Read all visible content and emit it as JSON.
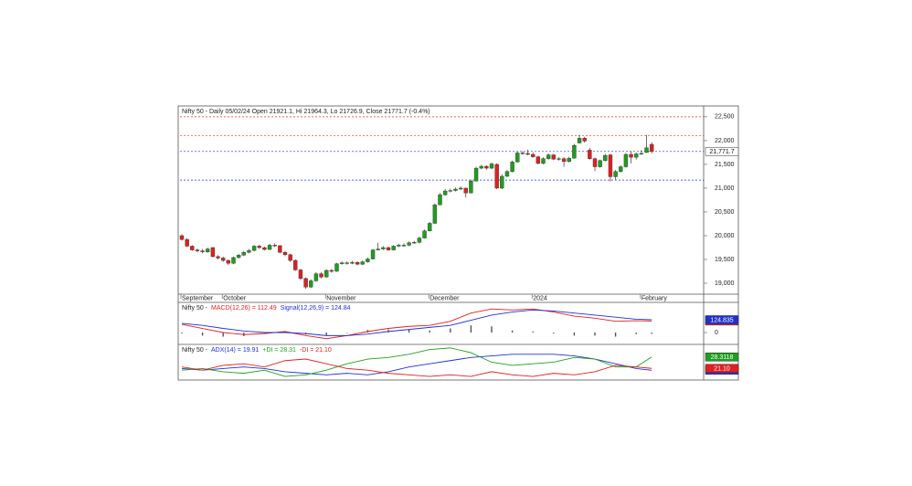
{
  "chart_data": [
    {
      "type": "candlestick",
      "title": "Nifty 50 - Daily 05/02/24 Open 21921.1, Hi 21964.3, Lo 21726.9, Close 21771.7 (-0.4%)",
      "categories": [
        "September",
        null,
        null,
        null,
        null,
        null,
        null,
        null,
        "October",
        null,
        null,
        null,
        null,
        null,
        null,
        null,
        null,
        null,
        null,
        null,
        null,
        null,
        null,
        null,
        null,
        null,
        null,
        null,
        "November",
        null,
        null,
        null,
        null,
        null,
        null,
        null,
        null,
        null,
        null,
        null,
        null,
        null,
        null,
        null,
        null,
        null,
        null,
        null,
        "December",
        null,
        null,
        null,
        null,
        null,
        null,
        null,
        null,
        null,
        null,
        null,
        null,
        null,
        null,
        null,
        null,
        null,
        null,
        null,
        "2024",
        null,
        null,
        null,
        null,
        null,
        null,
        null,
        null,
        null,
        null,
        null,
        null,
        null,
        null,
        null,
        null,
        null,
        null,
        null,
        null,
        "February",
        null,
        null
      ],
      "open": [
        20000,
        19920,
        19780,
        19700,
        19680,
        19660,
        19750,
        19560,
        19530,
        19480,
        19420,
        19540,
        19590,
        19650,
        19690,
        19780,
        19750,
        19710,
        19800,
        19790,
        19650,
        19600,
        19480,
        19280,
        19100,
        18920,
        19050,
        19200,
        19130,
        19270,
        19250,
        19410,
        19430,
        19420,
        19440,
        19400,
        19450,
        19510,
        19700,
        19720,
        19750,
        19700,
        19780,
        19800,
        19800,
        19850,
        19860,
        19950,
        20100,
        20260,
        20650,
        20860,
        20940,
        20950,
        20980,
        21000,
        20900,
        21150,
        21420,
        21460,
        21420,
        21500,
        21000,
        21250,
        21350,
        21550,
        21740,
        21730,
        21710,
        21660,
        21520,
        21620,
        21700,
        21610,
        21620,
        21560,
        21630,
        21950,
        22050,
        21800,
        21620,
        21450,
        21580,
        21700,
        21240,
        21350,
        21450,
        21710,
        21650,
        21720,
        21750,
        21921.1
      ],
      "high": [
        20030,
        19950,
        19800,
        19730,
        19720,
        19750,
        19760,
        19590,
        19560,
        19500,
        19560,
        19620,
        19680,
        19720,
        19800,
        19810,
        19770,
        19830,
        19840,
        19800,
        19680,
        19620,
        19500,
        19300,
        19120,
        19080,
        19230,
        19230,
        19290,
        19300,
        19430,
        19460,
        19460,
        19470,
        19460,
        19480,
        19540,
        19720,
        19850,
        19780,
        19770,
        19800,
        19830,
        19840,
        19880,
        19890,
        19980,
        20130,
        20290,
        20680,
        20900,
        20980,
        20990,
        21010,
        21040,
        21010,
        21180,
        21450,
        21490,
        21480,
        21540,
        21520,
        21290,
        21380,
        21580,
        21770,
        21780,
        21810,
        21750,
        21680,
        21650,
        21730,
        21720,
        21650,
        21650,
        21660,
        21930,
        22120,
        22080,
        21850,
        21640,
        21600,
        21720,
        21720,
        21380,
        21480,
        21740,
        21780,
        21750,
        21800,
        22120,
        21964.3
      ],
      "low": [
        19900,
        19760,
        19680,
        19650,
        19630,
        19640,
        19540,
        19500,
        19450,
        19380,
        19400,
        19520,
        19570,
        19630,
        19670,
        19720,
        19690,
        19700,
        19760,
        19630,
        19570,
        19450,
        19260,
        19070,
        18880,
        18900,
        19030,
        19100,
        19120,
        19220,
        19240,
        19390,
        19390,
        19400,
        19380,
        19380,
        19430,
        19500,
        19690,
        19700,
        19680,
        19690,
        19760,
        19770,
        19780,
        19830,
        19840,
        19940,
        20090,
        20250,
        20640,
        20840,
        20910,
        20930,
        20960,
        20800,
        20890,
        21140,
        21400,
        21390,
        21400,
        20980,
        20980,
        21230,
        21330,
        21540,
        21700,
        21690,
        21640,
        21500,
        21500,
        21600,
        21590,
        21580,
        21450,
        21540,
        21620,
        21940,
        21960,
        21600,
        21360,
        21430,
        21560,
        21140,
        21180,
        21330,
        21430,
        21520,
        21600,
        21700,
        21740,
        21726.9
      ],
      "close": [
        19920,
        19780,
        19700,
        19680,
        19660,
        19720,
        19560,
        19530,
        19480,
        19420,
        19540,
        19590,
        19650,
        19690,
        19780,
        19750,
        19710,
        19800,
        19790,
        19650,
        19600,
        19480,
        19280,
        19100,
        18920,
        19050,
        19200,
        19130,
        19270,
        19250,
        19410,
        19430,
        19420,
        19440,
        19400,
        19450,
        19510,
        19700,
        19720,
        19750,
        19700,
        19780,
        19800,
        19800,
        19850,
        19860,
        19950,
        20100,
        20260,
        20650,
        20860,
        20940,
        20950,
        20980,
        21000,
        20900,
        21150,
        21420,
        21460,
        21420,
        21510,
        21000,
        21250,
        21350,
        21550,
        21740,
        21730,
        21710,
        21660,
        21520,
        21620,
        21700,
        21610,
        21620,
        21560,
        21630,
        21900,
        22050,
        21990,
        21620,
        21450,
        21580,
        21690,
        21240,
        21350,
        21450,
        21710,
        21650,
        21720,
        21730,
        21850,
        21771.7
      ],
      "up_color": "#1f9e1f",
      "down_color": "#e02020",
      "ylim": [
        18770,
        22690
      ],
      "yticks": [
        {
          "value": 19000,
          "label": "19,000"
        },
        {
          "value": 19500,
          "label": "19,500"
        },
        {
          "value": 20000,
          "label": "20,000"
        },
        {
          "value": 20500,
          "label": "20,500"
        },
        {
          "value": 21000,
          "label": "21,000"
        },
        {
          "value": 21500,
          "label": "21,500"
        },
        {
          "value": 22000,
          "label": "22,000"
        },
        {
          "value": 22500,
          "label": "22,500"
        }
      ],
      "hlines": [
        {
          "value": 22500,
          "color": "#e03030"
        },
        {
          "value": 22100,
          "color": "#e03030"
        },
        {
          "value": 21771.7,
          "color": "#2030c0"
        },
        {
          "value": 21170,
          "color": "#2030c0"
        }
      ],
      "last_price_label": "21,771.7"
    },
    {
      "type": "macd",
      "title": "Nifty 50 -",
      "x": [
        0,
        4,
        8,
        12,
        16,
        20,
        24,
        28,
        32,
        36,
        40,
        44,
        48,
        52,
        56,
        60,
        64,
        68,
        72,
        76,
        80,
        84,
        88,
        91
      ],
      "series": [
        {
          "name": "MACD(12,26) = 112.49",
          "color": "#e02020",
          "kind": "line",
          "last_label": "112.49",
          "values": [
            80,
            40,
            0,
            -20,
            -10,
            10,
            -30,
            -60,
            -30,
            10,
            40,
            60,
            70,
            110,
            190,
            230,
            220,
            230,
            200,
            160,
            140,
            110,
            115,
            112.49
          ]
        },
        {
          "name": "Signal(12,26,9) = 124.84",
          "color": "#2030d0",
          "kind": "line",
          "last_label": "124.835",
          "values": [
            90,
            70,
            40,
            15,
            0,
            0,
            -10,
            -30,
            -30,
            -15,
            10,
            30,
            50,
            70,
            120,
            170,
            200,
            220,
            210,
            190,
            170,
            150,
            130,
            124.84
          ]
        },
        {
          "color": "#555555",
          "kind": "bar",
          "values": [
            -10,
            -30,
            -40,
            -35,
            -10,
            10,
            -20,
            -30,
            0,
            25,
            30,
            30,
            20,
            40,
            70,
            60,
            20,
            10,
            -10,
            -30,
            -30,
            -40,
            -15,
            -12.35
          ]
        }
      ],
      "ylim": [
        -98,
        285
      ],
      "yticks": [
        0
      ]
    },
    {
      "type": "adx",
      "title": "Nifty 50 -",
      "x": [
        0,
        4,
        8,
        12,
        16,
        20,
        24,
        28,
        32,
        36,
        40,
        44,
        48,
        52,
        56,
        60,
        64,
        68,
        72,
        76,
        80,
        84,
        88,
        91
      ],
      "series": [
        {
          "name": "ADX(14) = 19.91",
          "color": "#2030d0",
          "kind": "line",
          "last_label": "19.9143",
          "values": [
            21,
            20,
            21,
            22,
            21,
            19,
            18,
            17,
            18,
            17,
            19,
            22,
            24,
            26,
            28,
            29,
            30,
            30,
            30,
            29,
            27,
            24,
            21,
            19.91
          ]
        },
        {
          "name": "+DI = 28.31",
          "color": "#1f9e1f",
          "kind": "line",
          "last_label": "28.3118",
          "values": [
            20,
            21,
            19,
            18,
            20,
            16,
            17,
            20,
            24,
            27,
            28,
            30,
            33,
            34,
            31,
            25,
            23,
            24,
            25,
            28,
            27,
            22,
            22,
            28.31
          ]
        },
        {
          "name": "-DI = 21.10",
          "color": "#e02020",
          "kind": "line",
          "last_label": "21.10",
          "values": [
            22,
            20,
            23,
            24,
            22,
            26,
            27,
            24,
            21,
            20,
            18,
            17,
            16,
            17,
            16,
            19,
            17,
            16,
            18,
            17,
            19,
            23,
            22,
            21.1
          ]
        }
      ],
      "ylim": [
        14.9,
        34.5
      ]
    }
  ]
}
